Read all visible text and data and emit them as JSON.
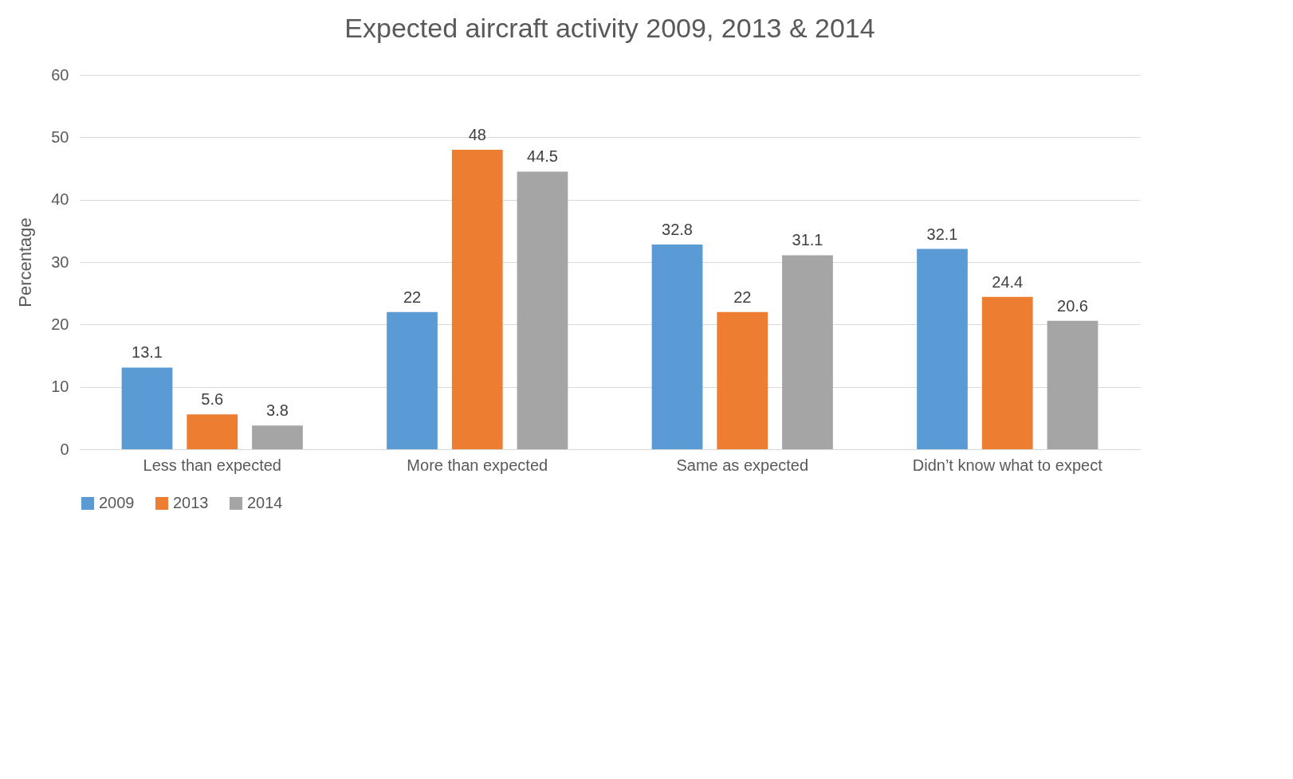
{
  "chart_data": {
    "type": "bar",
    "title": "Expected aircraft activity 2009, 2013 & 2014",
    "ylabel": "Percentage",
    "categories": [
      "Less than expected",
      "More than expected",
      "Same as expected",
      "Didn’t know what to expect"
    ],
    "series": [
      {
        "name": "2009",
        "color": "#5b9bd5",
        "values": [
          13.1,
          22,
          32.8,
          32.1
        ]
      },
      {
        "name": "2013",
        "color": "#ed7d31",
        "values": [
          5.6,
          48,
          22,
          24.4
        ]
      },
      {
        "name": "2014",
        "color": "#a5a5a5",
        "values": [
          3.8,
          44.5,
          31.1,
          20.6
        ]
      }
    ],
    "ylim": [
      0,
      60
    ],
    "yticks": [
      0,
      10,
      20,
      30,
      40,
      50,
      60
    ],
    "grid": "y",
    "legend": "bottom",
    "data_labels": true
  }
}
